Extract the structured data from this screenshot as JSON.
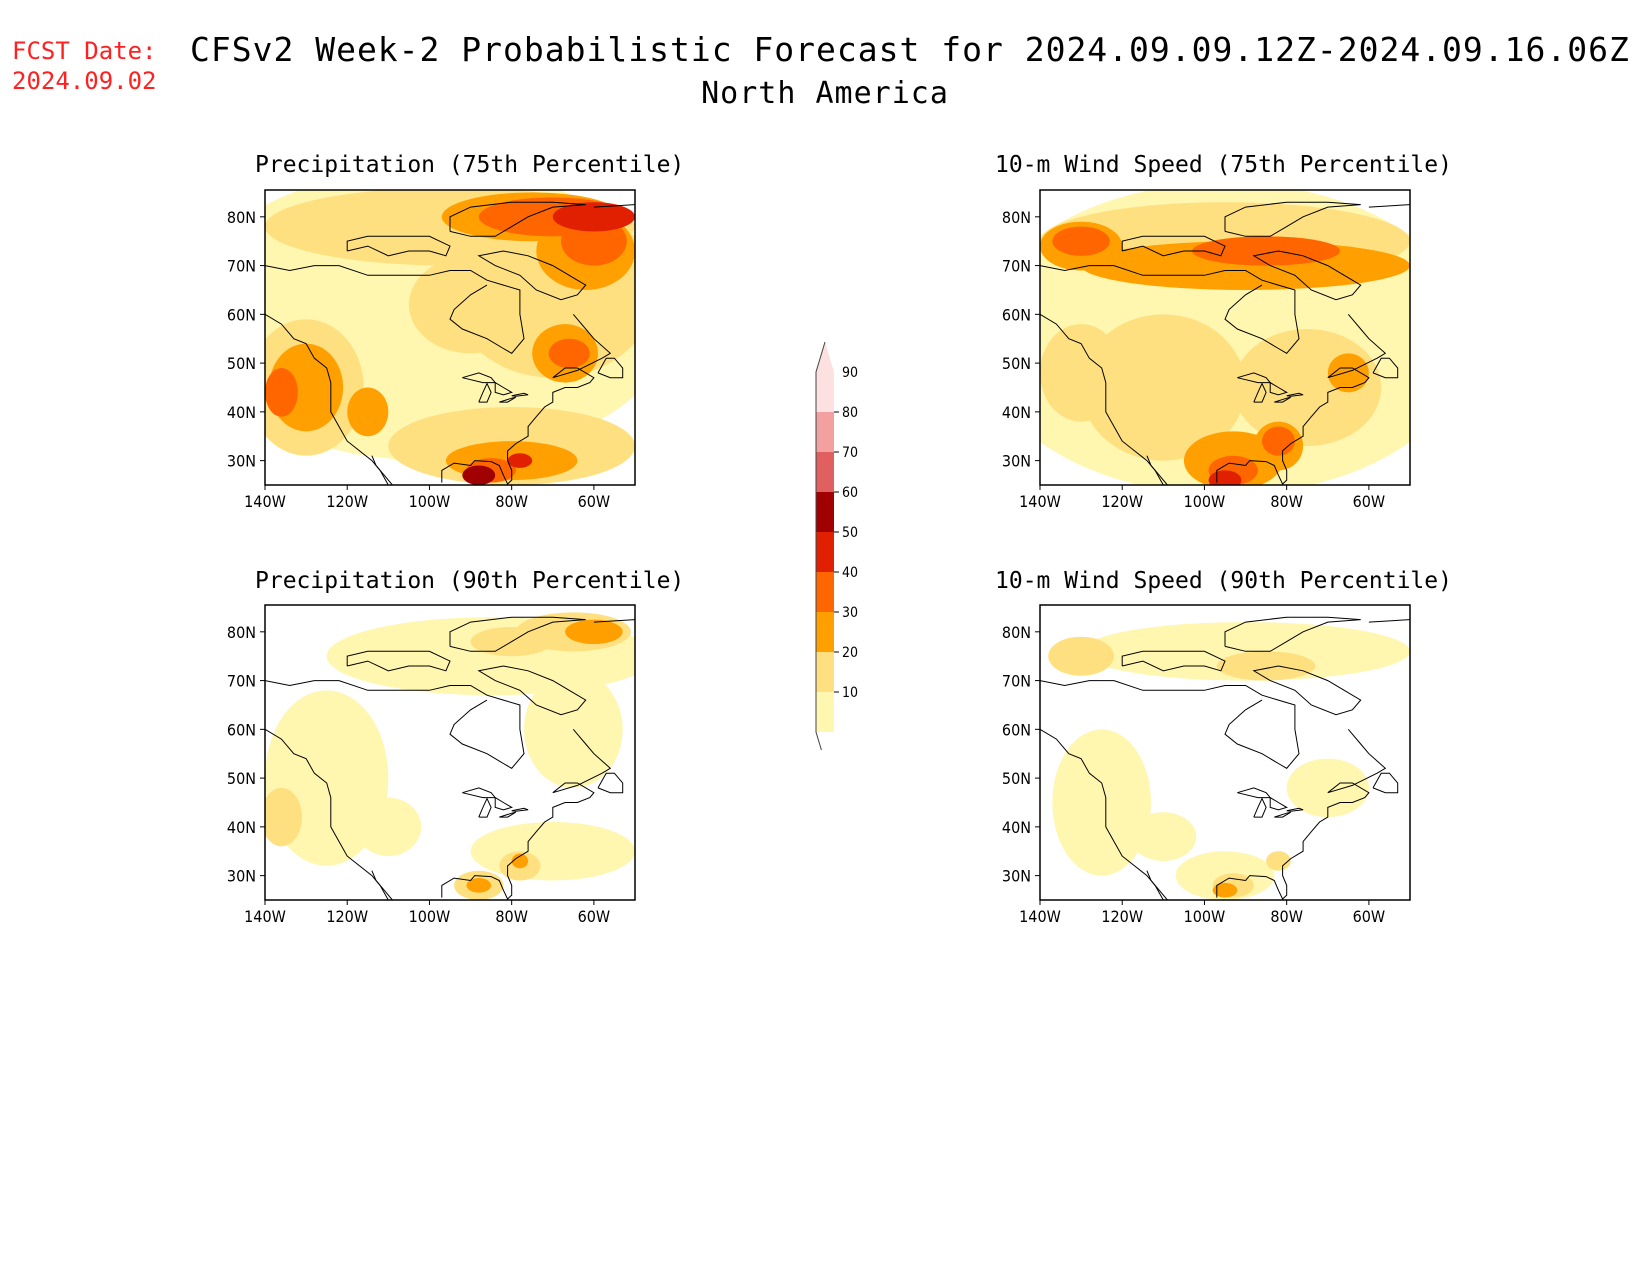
{
  "header": {
    "fcst_label": "FCST Date:",
    "fcst_date": "2024.09.02",
    "title": "CFSv2 Week-2 Probabilistic Forecast for 2024.09.09.12Z-2024.09.16.06Z",
    "subtitle": "North America"
  },
  "panels": [
    {
      "title": "Precipitation (75th Percentile)"
    },
    {
      "title": "10-m Wind Speed (75th Percentile)"
    },
    {
      "title": "Precipitation (90th Percentile)"
    },
    {
      "title": "10-m Wind Speed (90th Percentile)"
    }
  ],
  "axes": {
    "lat_labels": [
      "80N",
      "70N",
      "60N",
      "50N",
      "40N",
      "30N"
    ],
    "lon_labels": [
      "140W",
      "120W",
      "100W",
      "80W",
      "60W"
    ]
  },
  "colorbar": {
    "levels": [
      "90",
      "80",
      "70",
      "60",
      "50",
      "40",
      "30",
      "20",
      "10"
    ],
    "colors": [
      "#fde0e0",
      "#f2a0a0",
      "#e06060",
      "#a00000",
      "#e02000",
      "#ff6600",
      "#ffa000",
      "#ffe080",
      "#fff6b0"
    ]
  }
}
